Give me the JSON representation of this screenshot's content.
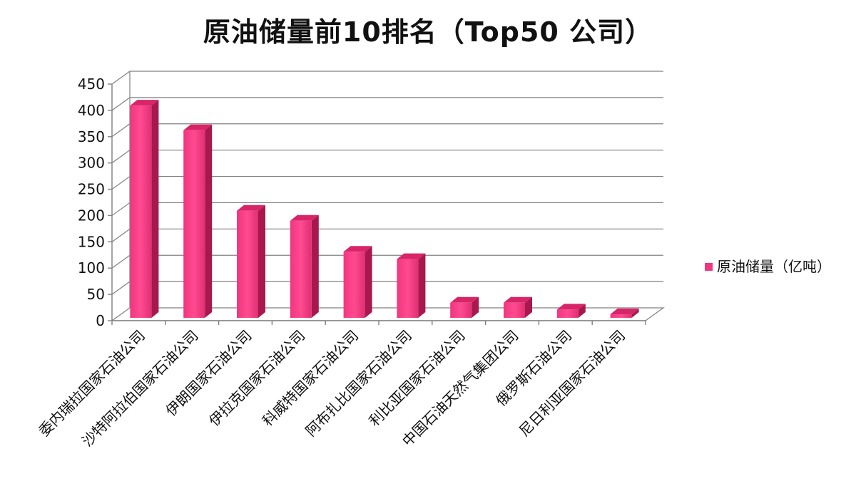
{
  "chart_data": {
    "type": "bar",
    "title": "原油储量前10排名（Top50 公司）",
    "xlabel": "",
    "ylabel": "",
    "ylim": [
      0,
      450
    ],
    "yticks": [
      0,
      50,
      100,
      150,
      200,
      250,
      300,
      350,
      400,
      450
    ],
    "grid": true,
    "legend_position": "right",
    "categories": [
      "委内瑞拉国家石油公司",
      "沙特阿拉伯国家石油公司",
      "伊朗国家石油公司",
      "伊拉克国家石油公司",
      "科威特国家石油公司",
      "阿布扎比国家石油公司",
      "利比亚国家石油公司",
      "中国石油天然气集团公司",
      "俄罗斯石油公司",
      "尼日利亚国家石油公司"
    ],
    "series": [
      {
        "name": "原油储量（亿吨）",
        "color": "#f0367f",
        "values": [
          420,
          373,
          220,
          201,
          142,
          128,
          45,
          45,
          32,
          23
        ]
      }
    ]
  }
}
